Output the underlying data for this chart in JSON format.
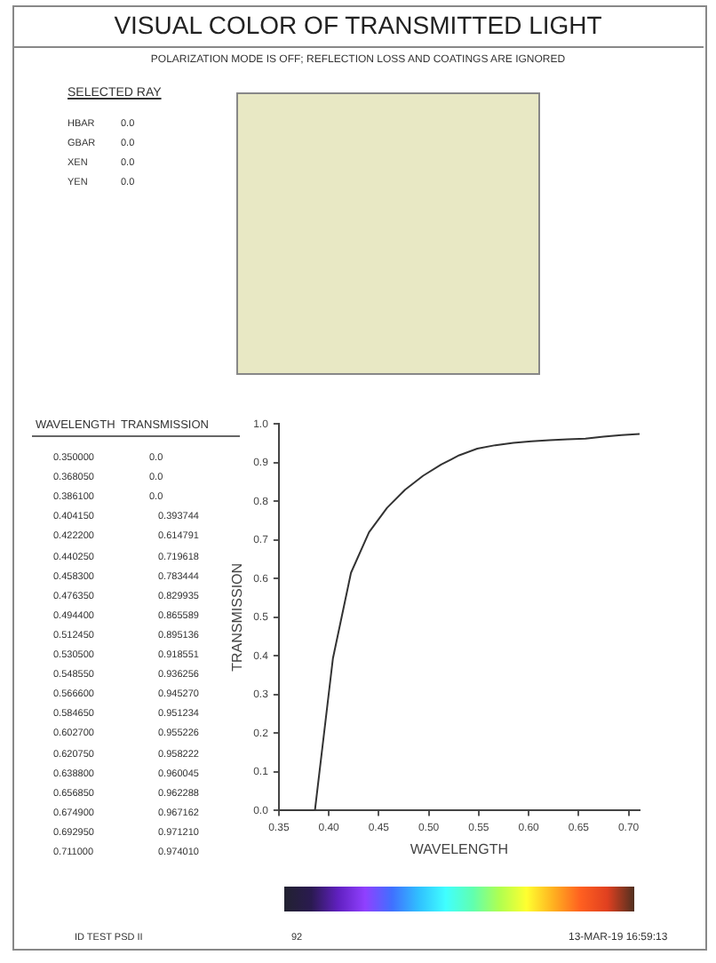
{
  "chart_data": {
    "type": "line",
    "title": "VISUAL COLOR OF TRANSMITTED LIGHT",
    "subtitle": "POLARIZATION MODE IS OFF; REFLECTION LOSS AND COATINGS ARE IGNORED",
    "xlabel": "WAVELENGTH",
    "ylabel": "TRANSMISSION",
    "annotations": [
      "SELECTED RAY",
      "HBAR",
      "0.0",
      "GBAR",
      "0.0",
      "XEN",
      "0.0",
      "YEN",
      "0.0",
      "WAVELENGTH",
      "TRANSMISSION",
      "ID TEST PSD II",
      "92",
      "13-MAR-19  16:59:13",
      "0.350000",
      "0.0",
      "0.368050",
      "0.0",
      "0.386100",
      "0.0",
      "0.404150",
      "0.393744",
      "0.422200",
      "0.614791",
      "0.440250",
      "0.719618",
      "0.458300",
      "0.783444",
      "0.476350",
      "0.829935",
      "0.494400",
      "0.865589",
      "0.512450",
      "0.895136",
      "0.530500",
      "0.918551",
      "0.548550",
      "0.936256",
      "0.566600",
      "0.945270",
      "0.584650",
      "0.951234",
      "0.602700",
      "0.955226",
      "0.620750",
      "0.958222",
      "0.638800",
      "0.960045",
      "0.656850",
      "0.962288",
      "0.674900",
      "0.967162",
      "0.692950",
      "0.971210",
      "0.711000",
      "0.974010"
    ],
    "x": [
      0.35,
      0.36805,
      0.3861,
      0.40415,
      0.4222,
      0.44025,
      0.4583,
      0.47635,
      0.4944,
      0.51245,
      0.5305,
      0.54855,
      0.5666,
      0.58465,
      0.6027,
      0.62075,
      0.6388,
      0.65685,
      0.6749,
      0.69295,
      0.711
    ],
    "series": [
      {
        "color": "#333333",
        "values": [
          0,
          0,
          0,
          0.394,
          0.615,
          0.72,
          0.783,
          0.83,
          0.866,
          0.895,
          0.919,
          0.936,
          0.945,
          0.951,
          0.955,
          0.958,
          0.96,
          0.962,
          0.967,
          0.971,
          0.974
        ]
      }
    ],
    "xlim": [
      0.35,
      0.711
    ],
    "xticks": [
      0.35,
      {
        "value": 0.4,
        "label": "0.40"
      },
      0.45,
      {
        "value": 0.5,
        "label": "0.50"
      },
      0.55,
      {
        "value": 0.6,
        "label": "0.60"
      },
      0.65,
      {
        "value": 0.7,
        "label": "0.70"
      }
    ],
    "ylim": [
      0,
      1
    ],
    "yticks": [
      {
        "value": 0,
        "label": "0.0"
      },
      0.1,
      0.2,
      0.3,
      0.4,
      0.5,
      0.6,
      0.7,
      0.8,
      0.9,
      {
        "value": 1,
        "label": "1.0"
      }
    ],
    "grid": false,
    "legend": false,
    "marker": "none",
    "line_style": "solid"
  }
}
